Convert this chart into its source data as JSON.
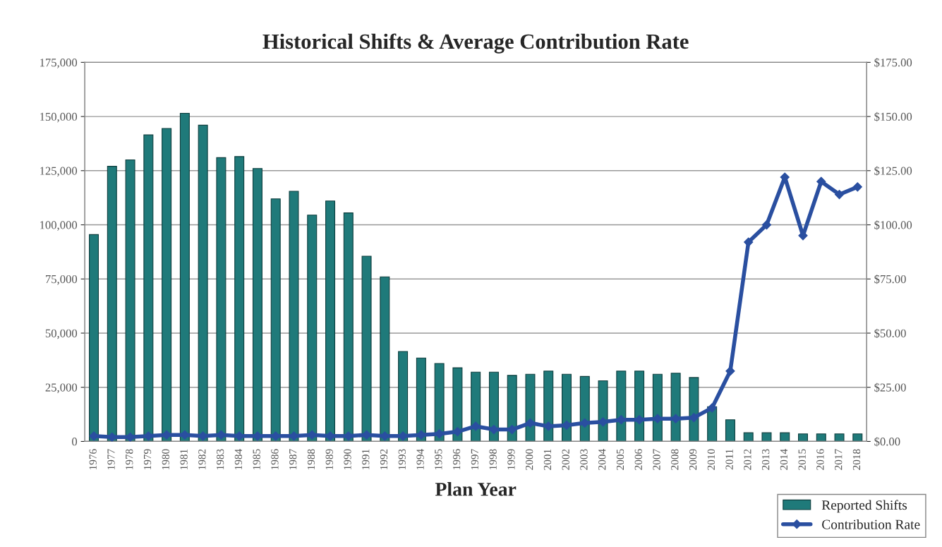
{
  "chart_data": {
    "type": "bar",
    "title": "Historical Shifts & Average Contribution Rate",
    "xlabel": "Plan Year",
    "categories": [
      "1976",
      "1977",
      "1978",
      "1979",
      "1980",
      "1981",
      "1982",
      "1983",
      "1984",
      "1985",
      "1986",
      "1987",
      "1988",
      "1989",
      "1990",
      "1991",
      "1992",
      "1993",
      "1994",
      "1995",
      "1996",
      "1997",
      "1998",
      "1999",
      "2000",
      "2001",
      "2002",
      "2003",
      "2004",
      "2005",
      "2006",
      "2007",
      "2008",
      "2009",
      "2010",
      "2011",
      "2012",
      "2013",
      "2014",
      "2015",
      "2016",
      "2017",
      "2018"
    ],
    "series": [
      {
        "name": "Reported Shifts",
        "color": "#1f7a7a",
        "values": [
          95500,
          127000,
          130000,
          141500,
          144500,
          151500,
          146000,
          131000,
          131500,
          126000,
          112000,
          115500,
          104500,
          111000,
          105500,
          85500,
          76000,
          41500,
          38500,
          36000,
          34000,
          32000,
          32000,
          30500,
          31000,
          32500,
          31000,
          30000,
          28000,
          32500,
          32500,
          31000,
          31500,
          29500,
          16000,
          10000,
          4000,
          4000,
          4000,
          3500,
          3500,
          3500,
          3500
        ]
      },
      {
        "name": "Contribution Rate",
        "type": "line",
        "axis": "y2",
        "color": "#2a4fa0",
        "marker": "diamond",
        "line_style": "solid",
        "values": [
          2.5,
          2,
          2,
          2.5,
          3,
          3,
          2.5,
          3,
          2.5,
          2.5,
          2.5,
          2.5,
          3,
          2.5,
          2.5,
          3,
          2.5,
          2.5,
          3,
          3.5,
          4.5,
          7,
          5.5,
          5.5,
          8.5,
          7,
          7.5,
          8.5,
          9,
          10,
          10,
          10.5,
          10.5,
          11,
          15.5,
          32.5,
          92,
          100,
          122,
          95,
          120,
          114,
          117.5
        ]
      }
    ],
    "ylim": [
      0,
      175000
    ],
    "yticks": [
      {
        "value": 0,
        "label": "0"
      },
      {
        "value": 25000,
        "label": "25,000"
      },
      {
        "value": 50000,
        "label": "50,000"
      },
      {
        "value": 75000,
        "label": "75,000"
      },
      {
        "value": 100000,
        "label": "100,000"
      },
      {
        "value": 125000,
        "label": "125,000"
      },
      {
        "value": 150000,
        "label": "150,000"
      },
      {
        "value": 175000,
        "label": "175,000"
      }
    ],
    "y2lim": [
      0,
      175
    ],
    "y2ticks": [
      {
        "value": 0,
        "label": "$0.00"
      },
      {
        "value": 25,
        "label": "$25.00"
      },
      {
        "value": 50,
        "label": "$50.00"
      },
      {
        "value": 75,
        "label": "$75.00"
      },
      {
        "value": 100,
        "label": "$100.00"
      },
      {
        "value": 125,
        "label": "$125.00"
      },
      {
        "value": 150,
        "label": "$150.00"
      },
      {
        "value": 175,
        "label": "$175.00"
      }
    ],
    "grid": "y",
    "legend": "bottom right"
  }
}
